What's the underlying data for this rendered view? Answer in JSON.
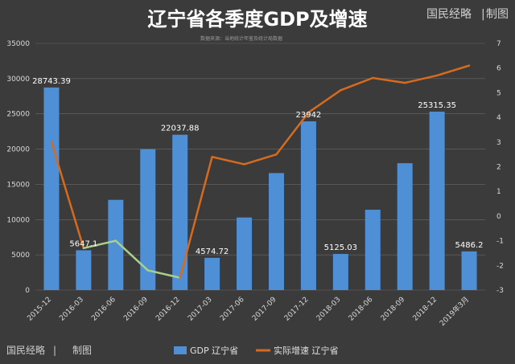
{
  "header": {
    "title": "辽宁省各季度GDP及增速",
    "source_note": "数据来源：当地统计年鉴及统计局数据",
    "brand": "国民经略",
    "brand_suffix": "制图"
  },
  "footer": {
    "brand": "国民经略",
    "brand_suffix": "制图"
  },
  "colors": {
    "bar": "#4f8fd6",
    "growth_line": "#d66a1f",
    "growth_line_negative_segment": "#a8d08d",
    "text": "#ffffff",
    "grid": "#6a6a6a",
    "tick_text": "#d9d9d9"
  },
  "chart_data": {
    "type": "bar",
    "title": "辽宁省各季度GDP及增速",
    "categories": [
      "2015-12",
      "2016-03",
      "2016-06",
      "2016-09",
      "2016-12",
      "2017-03",
      "2017-06",
      "2017-09",
      "2017-12",
      "2018-03",
      "2018-06",
      "2018-09",
      "2018-12",
      "2019年3月"
    ],
    "series": [
      {
        "name": "GDP 辽宁省",
        "type": "bar",
        "axis": "left",
        "values": [
          28743.39,
          5647.1,
          12800,
          20000,
          22037.88,
          4574.72,
          10300,
          16600,
          23942,
          5125.03,
          11400,
          18000,
          25315.35,
          5486.2
        ],
        "data_labels": [
          "28743.39",
          "5647.1",
          "",
          "",
          "22037.88",
          "4574.72",
          "",
          "",
          "23942",
          "5125.03",
          "",
          "",
          "25315.35",
          "5486.2"
        ]
      },
      {
        "name": "实际增速 辽宁省",
        "type": "line",
        "axis": "right",
        "values": [
          3.0,
          -1.3,
          -1.0,
          -2.2,
          -2.5,
          2.4,
          2.1,
          2.5,
          4.2,
          5.1,
          5.6,
          5.4,
          5.7,
          6.1
        ]
      }
    ],
    "y_left": {
      "min": 0,
      "max": 35000,
      "ticks": [
        0,
        5000,
        10000,
        15000,
        20000,
        25000,
        30000,
        35000
      ]
    },
    "y_right": {
      "min": -3,
      "max": 7,
      "ticks": [
        -3,
        -2,
        -1,
        0,
        1,
        2,
        3,
        4,
        5,
        6,
        7
      ]
    },
    "legend_position": "bottom",
    "grid": true
  }
}
